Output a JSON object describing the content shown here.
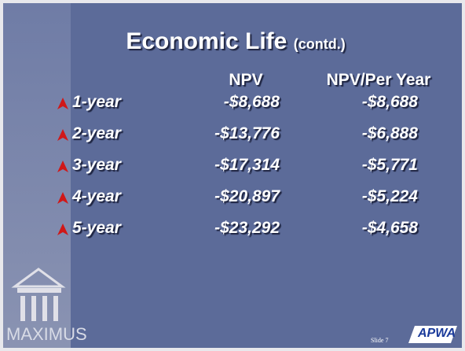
{
  "title": "Economic Life",
  "subtitle": "(contd.)",
  "table": {
    "headers": [
      "NPV",
      "NPV/Per Year"
    ],
    "rows": [
      [
        "1-year",
        "-$8,688",
        "-$8,688"
      ],
      [
        "2-year",
        "-$13,776",
        "-$6,888"
      ],
      [
        "3-year",
        "-$17,314",
        "-$5,771"
      ],
      [
        "4-year",
        "-$20,897",
        "-$5,224"
      ],
      [
        "5-year",
        "-$23,292",
        "-$4,658"
      ]
    ]
  },
  "footer": {
    "logo": "MAXIMUS",
    "slide": "Slide 7",
    "brand": "APWA"
  }
}
